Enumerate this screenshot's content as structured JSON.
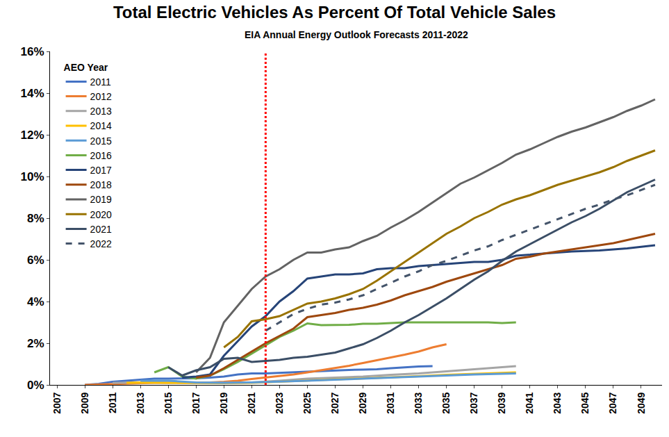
{
  "chart_data": {
    "type": "line",
    "title": "Total Electric Vehicles As Percent Of Total Vehicle Sales",
    "subtitle": "EIA Annual Energy Outlook Forecasts 2011-2022",
    "legend_title": "AEO Year",
    "legend": "upper left",
    "grid": false,
    "xlim": [
      2006.5,
      2050.5
    ],
    "xticks": [
      2007,
      2009,
      2011,
      2013,
      2015,
      2017,
      2019,
      2021,
      2023,
      2025,
      2027,
      2029,
      2031,
      2033,
      2035,
      2037,
      2039,
      2041,
      2043,
      2045,
      2047,
      2049
    ],
    "ylim": [
      0,
      16
    ],
    "yticks": [
      {
        "value": 0,
        "label": "0%"
      },
      {
        "value": 2,
        "label": "2%"
      },
      {
        "value": 4,
        "label": "4%"
      },
      {
        "value": 6,
        "label": "6%"
      },
      {
        "value": 8,
        "label": "8%"
      },
      {
        "value": 10,
        "label": "10%"
      },
      {
        "value": 12,
        "label": "12%"
      },
      {
        "value": 14,
        "label": "14%"
      },
      {
        "value": 16,
        "label": "16%"
      }
    ],
    "vline": {
      "x": 2022,
      "color": "#ff0000",
      "line_style": "dot"
    },
    "series": [
      {
        "name": "2011",
        "color": "#4472c4",
        "line_style": "solid",
        "x": [
          2009,
          2010,
          2011,
          2012,
          2013,
          2014,
          2015,
          2016,
          2017,
          2018,
          2019,
          2020,
          2021,
          2022,
          2023,
          2024,
          2025,
          2026,
          2027,
          2028,
          2029,
          2030,
          2031,
          2032,
          2033,
          2034
        ],
        "values": [
          0,
          0.05,
          0.15,
          0.2,
          0.25,
          0.3,
          0.3,
          0.3,
          0.32,
          0.35,
          0.4,
          0.5,
          0.55,
          0.55,
          0.58,
          0.62,
          0.65,
          0.68,
          0.7,
          0.72,
          0.73,
          0.75,
          0.8,
          0.85,
          0.88,
          0.9
        ]
      },
      {
        "name": "2012",
        "color": "#ed7d31",
        "line_style": "solid",
        "x": [
          2009,
          2010,
          2011,
          2012,
          2013,
          2014,
          2015,
          2016,
          2017,
          2018,
          2019,
          2020,
          2021,
          2022,
          2023,
          2024,
          2025,
          2026,
          2027,
          2028,
          2029,
          2030,
          2031,
          2032,
          2033,
          2034,
          2035
        ],
        "values": [
          0,
          0.02,
          0.05,
          0.08,
          0.1,
          0.1,
          0.1,
          0.1,
          0.1,
          0.12,
          0.15,
          0.2,
          0.28,
          0.35,
          0.42,
          0.5,
          0.6,
          0.7,
          0.8,
          0.92,
          1.05,
          1.18,
          1.3,
          1.45,
          1.6,
          1.8,
          1.95
        ]
      },
      {
        "name": "2013",
        "color": "#a5a5a5",
        "line_style": "solid",
        "x": [
          2011,
          2013,
          2015,
          2017,
          2019,
          2021,
          2023,
          2025,
          2027,
          2029,
          2031,
          2033,
          2035,
          2037,
          2039,
          2040
        ],
        "values": [
          0.1,
          0.12,
          0.1,
          0.1,
          0.1,
          0.12,
          0.2,
          0.3,
          0.35,
          0.4,
          0.48,
          0.55,
          0.65,
          0.75,
          0.85,
          0.9
        ]
      },
      {
        "name": "2014",
        "color": "#ffc000",
        "line_style": "solid",
        "x": [
          2012,
          2013,
          2015,
          2017,
          2019,
          2021,
          2023,
          2025,
          2027,
          2029,
          2031,
          2033,
          2035,
          2037,
          2040
        ],
        "values": [
          0.1,
          0.12,
          0.1,
          0.08,
          0.08,
          0.1,
          0.15,
          0.2,
          0.25,
          0.3,
          0.35,
          0.42,
          0.48,
          0.53,
          0.6
        ]
      },
      {
        "name": "2015",
        "color": "#5b9bd5",
        "line_style": "solid",
        "x": [
          2013,
          2015,
          2017,
          2019,
          2021,
          2023,
          2025,
          2027,
          2029,
          2031,
          2033,
          2035,
          2037,
          2040
        ],
        "values": [
          0.2,
          0.2,
          0.12,
          0.1,
          0.12,
          0.15,
          0.2,
          0.25,
          0.3,
          0.35,
          0.4,
          0.45,
          0.5,
          0.55
        ]
      },
      {
        "name": "2016",
        "color": "#70ad47",
        "line_style": "solid",
        "x": [
          2014,
          2015,
          2016,
          2017,
          2018,
          2019,
          2020,
          2021,
          2022,
          2023,
          2024,
          2025,
          2026,
          2027,
          2028,
          2029,
          2030,
          2031,
          2032,
          2034,
          2036,
          2038,
          2039,
          2040
        ],
        "values": [
          0.6,
          0.85,
          0.4,
          0.3,
          0.45,
          0.75,
          1.1,
          1.5,
          1.9,
          2.3,
          2.6,
          2.95,
          2.87,
          2.87,
          2.88,
          2.93,
          2.93,
          2.97,
          3.0,
          3.0,
          3.0,
          3.0,
          2.97,
          3.0
        ]
      },
      {
        "name": "2017",
        "color": "#264478",
        "line_style": "solid",
        "x": [
          2016,
          2017,
          2018,
          2019,
          2020,
          2021,
          2022,
          2023,
          2024,
          2025,
          2026,
          2027,
          2028,
          2029,
          2030,
          2031,
          2032,
          2033,
          2034,
          2035,
          2036,
          2037,
          2038,
          2039,
          2040,
          2042,
          2044,
          2046,
          2048,
          2050
        ],
        "values": [
          0.35,
          0.4,
          0.5,
          1.4,
          2.1,
          2.8,
          3.3,
          4.0,
          4.5,
          5.1,
          5.2,
          5.3,
          5.3,
          5.35,
          5.55,
          5.6,
          5.6,
          5.7,
          5.75,
          5.8,
          5.85,
          5.9,
          5.9,
          6.0,
          6.2,
          6.3,
          6.4,
          6.45,
          6.55,
          6.7
        ]
      },
      {
        "name": "2018",
        "color": "#9e480e",
        "line_style": "solid",
        "x": [
          2017,
          2018,
          2019,
          2020,
          2021,
          2022,
          2023,
          2024,
          2025,
          2026,
          2027,
          2028,
          2029,
          2030,
          2031,
          2032,
          2033,
          2034,
          2035,
          2036,
          2037,
          2038,
          2039,
          2040,
          2041,
          2042,
          2043,
          2044,
          2045,
          2046,
          2047,
          2048,
          2049,
          2050
        ],
        "values": [
          0.35,
          0.45,
          0.8,
          1.2,
          1.6,
          2.0,
          2.35,
          2.7,
          3.25,
          3.35,
          3.45,
          3.6,
          3.7,
          3.85,
          4.05,
          4.3,
          4.5,
          4.7,
          4.95,
          5.15,
          5.35,
          5.55,
          5.75,
          6.05,
          6.15,
          6.3,
          6.4,
          6.5,
          6.6,
          6.7,
          6.8,
          6.95,
          7.1,
          7.25
        ]
      },
      {
        "name": "2019",
        "color": "#636363",
        "line_style": "solid",
        "x": [
          2017,
          2018,
          2019,
          2020,
          2021,
          2022,
          2023,
          2024,
          2025,
          2026,
          2027,
          2028,
          2029,
          2030,
          2031,
          2032,
          2033,
          2034,
          2035,
          2036,
          2037,
          2038,
          2039,
          2040,
          2041,
          2042,
          2043,
          2044,
          2045,
          2046,
          2047,
          2048,
          2049,
          2050
        ],
        "values": [
          0.6,
          1.3,
          3.0,
          3.8,
          4.6,
          5.2,
          5.55,
          6.0,
          6.35,
          6.35,
          6.5,
          6.6,
          6.9,
          7.15,
          7.55,
          7.9,
          8.3,
          8.75,
          9.2,
          9.65,
          9.95,
          10.3,
          10.65,
          11.05,
          11.3,
          11.6,
          11.9,
          12.15,
          12.35,
          12.6,
          12.85,
          13.15,
          13.4,
          13.7
        ]
      },
      {
        "name": "2020",
        "color": "#997300",
        "line_style": "solid",
        "x": [
          2019,
          2020,
          2021,
          2022,
          2023,
          2024,
          2025,
          2026,
          2027,
          2028,
          2029,
          2030,
          2031,
          2032,
          2033,
          2034,
          2035,
          2036,
          2037,
          2038,
          2039,
          2040,
          2041,
          2042,
          2043,
          2044,
          2045,
          2046,
          2047,
          2048,
          2049,
          2050
        ],
        "values": [
          1.8,
          2.3,
          3.05,
          3.15,
          3.3,
          3.6,
          3.9,
          4.0,
          4.15,
          4.35,
          4.6,
          5.0,
          5.45,
          5.9,
          6.35,
          6.8,
          7.25,
          7.6,
          8.0,
          8.3,
          8.65,
          8.9,
          9.1,
          9.35,
          9.6,
          9.8,
          10.0,
          10.2,
          10.45,
          10.75,
          11.0,
          11.25
        ]
      },
      {
        "name": "2021",
        "color": "#3b4e66",
        "line_style": "solid",
        "x": [
          2015,
          2016,
          2017,
          2018,
          2019,
          2020,
          2021,
          2022,
          2023,
          2024,
          2025,
          2026,
          2027,
          2028,
          2029,
          2030,
          2031,
          2032,
          2033,
          2034,
          2035,
          2036,
          2037,
          2038,
          2039,
          2040,
          2041,
          2042,
          2043,
          2044,
          2045,
          2046,
          2047,
          2048,
          2049,
          2050
        ],
        "values": [
          0.85,
          0.45,
          0.7,
          0.85,
          1.25,
          1.3,
          1.1,
          1.15,
          1.2,
          1.3,
          1.35,
          1.45,
          1.55,
          1.75,
          1.95,
          2.25,
          2.6,
          3.0,
          3.35,
          3.75,
          4.15,
          4.6,
          5.05,
          5.45,
          5.95,
          6.4,
          6.75,
          7.1,
          7.45,
          7.8,
          8.1,
          8.45,
          8.85,
          9.25,
          9.55,
          9.85
        ]
      },
      {
        "name": "2022",
        "color": "#44546a",
        "line_style": "dash",
        "x": [
          2022,
          2023,
          2024,
          2025,
          2026,
          2027,
          2028,
          2029,
          2030,
          2031,
          2032,
          2033,
          2034,
          2035,
          2036,
          2037,
          2038,
          2039,
          2040,
          2041,
          2042,
          2043,
          2044,
          2045,
          2046,
          2047,
          2048,
          2049,
          2050
        ],
        "values": [
          2.6,
          3.0,
          3.4,
          3.65,
          3.85,
          3.95,
          4.1,
          4.3,
          4.6,
          4.9,
          5.2,
          5.45,
          5.75,
          5.95,
          6.2,
          6.45,
          6.65,
          6.95,
          7.2,
          7.45,
          7.7,
          7.95,
          8.2,
          8.45,
          8.65,
          8.9,
          9.1,
          9.35,
          9.6
        ]
      }
    ]
  }
}
